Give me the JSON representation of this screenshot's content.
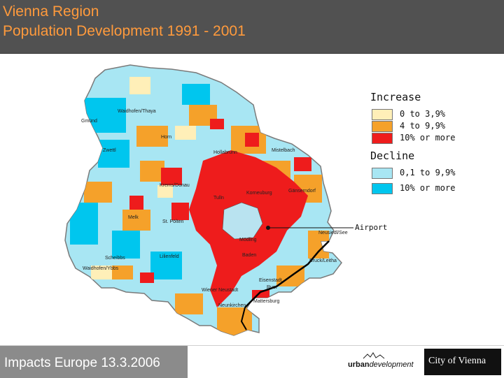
{
  "title": {
    "line1": "Vienna Region",
    "line2": "Population Development 1991 - 2001"
  },
  "colors": {
    "title_text": "#ff9a3c",
    "title_bg": "#515151",
    "increase_low": "#ffefb8",
    "increase_mid": "#f5a12a",
    "increase_high": "#ee1c1c",
    "decline_low": "#a8e6f3",
    "decline_high": "#00c6ee",
    "border": "#000000"
  },
  "legend": {
    "increase": {
      "heading": "Increase",
      "items": [
        {
          "label": "0 to 3,9%",
          "color": "#ffefb8"
        },
        {
          "label": "4 to 9,9%",
          "color": "#f5a12a"
        },
        {
          "label": "10% or more",
          "color": "#ee1c1c"
        }
      ]
    },
    "decline": {
      "heading": "Decline",
      "items": [
        {
          "label": "0,1 to 9,9%",
          "color": "#a8e6f3"
        },
        {
          "label": "10% or more",
          "color": "#00c6ee"
        }
      ]
    }
  },
  "map": {
    "places": [
      "Waidhofen/Thaya",
      "Gmünd",
      "Horn",
      "Zwettl",
      "Hollabrunn",
      "Mistelbach",
      "Krems/Donau",
      "Tulln",
      "Korneuburg",
      "Gänserndorf",
      "St. Pölten",
      "Melk",
      "Mödling",
      "Scheibbs",
      "Lilienfeld",
      "Baden",
      "Bruck/Leitha",
      "Waidhofen/Ybbs",
      "Eisenstadt",
      "Rust",
      "Neusiedl/See",
      "Wiener Neustadt",
      "Mattersburg",
      "Neunkirchen"
    ],
    "airport_label": "Airport"
  },
  "footer": {
    "text": "Impacts Europe 13.3.2006",
    "urban_bold": "urban",
    "urban_italic": "development",
    "city_logo": "City of Vienna"
  }
}
